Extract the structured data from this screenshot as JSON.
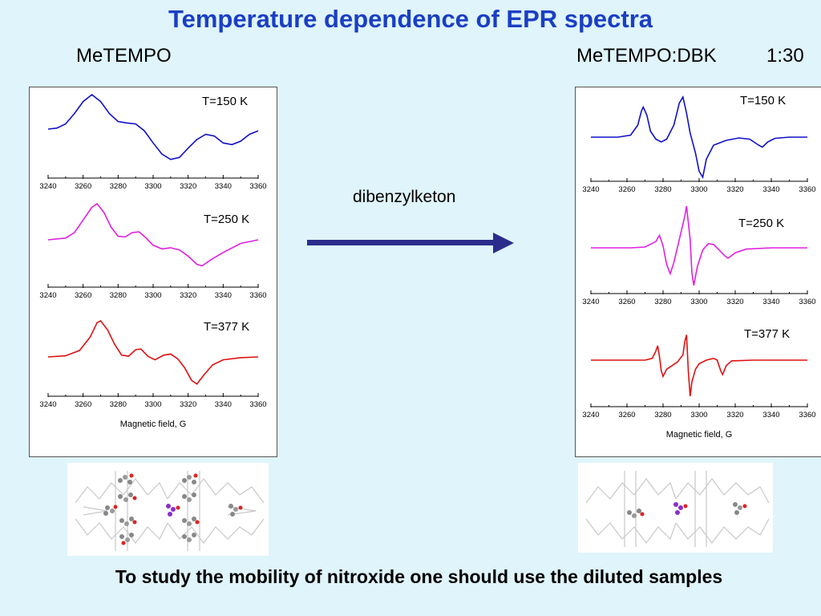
{
  "title": "Temperature dependence of EPR spectra",
  "left_label": "MeTEMPO",
  "right_label": "MeTEMPO:DBK",
  "right_ratio": "1:30",
  "arrow_label": "dibenzylketon",
  "footer": "To study the mobility of nitroxide one should use the diluted samples",
  "colors": {
    "t150": "#1010c8",
    "t250": "#e020e0",
    "t377": "#e01010",
    "arrow": "#2c2c8c",
    "title": "#1a3fc4"
  },
  "chart_data": [
    {
      "type": "line",
      "panel": "MeTEMPO",
      "xlabel": "Magnetic field, G",
      "ylabel": "",
      "xlim": [
        3240,
        3360
      ],
      "xticks": [
        3240,
        3260,
        3280,
        3300,
        3320,
        3340,
        3360
      ],
      "series": [
        {
          "name": "T=150 K",
          "color": "#1010c8",
          "points": [
            [
              3240,
              0.0
            ],
            [
              3245,
              0.03
            ],
            [
              3250,
              0.15
            ],
            [
              3255,
              0.45
            ],
            [
              3260,
              0.8
            ],
            [
              3265,
              1.0
            ],
            [
              3270,
              0.8
            ],
            [
              3275,
              0.45
            ],
            [
              3280,
              0.22
            ],
            [
              3285,
              0.18
            ],
            [
              3290,
              0.15
            ],
            [
              3295,
              -0.05
            ],
            [
              3300,
              -0.4
            ],
            [
              3305,
              -0.72
            ],
            [
              3310,
              -0.88
            ],
            [
              3315,
              -0.82
            ],
            [
              3320,
              -0.55
            ],
            [
              3325,
              -0.3
            ],
            [
              3330,
              -0.15
            ],
            [
              3335,
              -0.2
            ],
            [
              3340,
              -0.4
            ],
            [
              3345,
              -0.45
            ],
            [
              3350,
              -0.35
            ],
            [
              3355,
              -0.15
            ],
            [
              3360,
              -0.05
            ]
          ]
        },
        {
          "name": "T=250 K",
          "color": "#e020e0",
          "points": [
            [
              3240,
              0.0
            ],
            [
              3250,
              0.05
            ],
            [
              3255,
              0.2
            ],
            [
              3260,
              0.55
            ],
            [
              3265,
              0.9
            ],
            [
              3268,
              1.0
            ],
            [
              3272,
              0.75
            ],
            [
              3276,
              0.35
            ],
            [
              3280,
              0.1
            ],
            [
              3284,
              0.08
            ],
            [
              3288,
              0.2
            ],
            [
              3292,
              0.22
            ],
            [
              3296,
              0.05
            ],
            [
              3300,
              -0.15
            ],
            [
              3305,
              -0.25
            ],
            [
              3310,
              -0.22
            ],
            [
              3315,
              -0.28
            ],
            [
              3320,
              -0.45
            ],
            [
              3325,
              -0.68
            ],
            [
              3328,
              -0.72
            ],
            [
              3333,
              -0.55
            ],
            [
              3340,
              -0.35
            ],
            [
              3350,
              -0.1
            ],
            [
              3360,
              0.0
            ]
          ]
        },
        {
          "name": "T=377 K",
          "color": "#e01010",
          "points": [
            [
              3240,
              0.0
            ],
            [
              3250,
              0.03
            ],
            [
              3258,
              0.18
            ],
            [
              3264,
              0.55
            ],
            [
              3268,
              0.95
            ],
            [
              3270,
              1.0
            ],
            [
              3274,
              0.75
            ],
            [
              3278,
              0.35
            ],
            [
              3282,
              0.05
            ],
            [
              3286,
              0.02
            ],
            [
              3290,
              0.2
            ],
            [
              3293,
              0.22
            ],
            [
              3297,
              0.02
            ],
            [
              3301,
              -0.08
            ],
            [
              3306,
              0.05
            ],
            [
              3310,
              0.08
            ],
            [
              3314,
              -0.05
            ],
            [
              3318,
              -0.3
            ],
            [
              3322,
              -0.65
            ],
            [
              3325,
              -0.75
            ],
            [
              3329,
              -0.5
            ],
            [
              3334,
              -0.22
            ],
            [
              3340,
              -0.08
            ],
            [
              3350,
              -0.02
            ],
            [
              3360,
              0.0
            ]
          ]
        }
      ]
    },
    {
      "type": "line",
      "panel": "MeTEMPO:DBK 1:30",
      "xlabel": "Magnetic field, G",
      "ylabel": "",
      "xlim": [
        3240,
        3360
      ],
      "xticks": [
        3240,
        3260,
        3280,
        3300,
        3320,
        3340,
        3360
      ],
      "series": [
        {
          "name": "T=150 K",
          "color": "#1010c8",
          "points": [
            [
              3240,
              0.0
            ],
            [
              3255,
              0.0
            ],
            [
              3262,
              0.05
            ],
            [
              3266,
              0.3
            ],
            [
              3268,
              0.65
            ],
            [
              3269,
              0.75
            ],
            [
              3271,
              0.55
            ],
            [
              3273,
              0.15
            ],
            [
              3276,
              -0.05
            ],
            [
              3279,
              -0.12
            ],
            [
              3282,
              -0.05
            ],
            [
              3286,
              0.3
            ],
            [
              3289,
              0.85
            ],
            [
              3291,
              1.0
            ],
            [
              3293,
              0.6
            ],
            [
              3295,
              0.1
            ],
            [
              3298,
              -0.4
            ],
            [
              3300,
              -0.85
            ],
            [
              3302,
              -1.0
            ],
            [
              3304,
              -0.55
            ],
            [
              3308,
              -0.2
            ],
            [
              3315,
              -0.08
            ],
            [
              3322,
              -0.02
            ],
            [
              3328,
              -0.05
            ],
            [
              3333,
              -0.2
            ],
            [
              3335,
              -0.25
            ],
            [
              3338,
              -0.12
            ],
            [
              3342,
              -0.03
            ],
            [
              3350,
              0.0
            ],
            [
              3360,
              0.0
            ]
          ]
        },
        {
          "name": "T=250 K",
          "color": "#e020e0",
          "points": [
            [
              3240,
              0.0
            ],
            [
              3262,
              0.0
            ],
            [
              3270,
              0.02
            ],
            [
              3276,
              0.15
            ],
            [
              3278,
              0.3
            ],
            [
              3280,
              0.05
            ],
            [
              3282,
              -0.4
            ],
            [
              3284,
              -0.62
            ],
            [
              3286,
              -0.35
            ],
            [
              3289,
              0.2
            ],
            [
              3292,
              0.75
            ],
            [
              3293,
              1.0
            ],
            [
              3295,
              0.2
            ],
            [
              3296,
              -0.6
            ],
            [
              3297,
              -0.9
            ],
            [
              3299,
              -0.45
            ],
            [
              3302,
              -0.05
            ],
            [
              3305,
              0.1
            ],
            [
              3308,
              0.08
            ],
            [
              3311,
              -0.05
            ],
            [
              3314,
              -0.18
            ],
            [
              3316,
              -0.25
            ],
            [
              3320,
              -0.12
            ],
            [
              3326,
              -0.03
            ],
            [
              3340,
              0.0
            ],
            [
              3360,
              0.0
            ]
          ]
        },
        {
          "name": "T=377 K",
          "color": "#e01010",
          "points": [
            [
              3240,
              0.0
            ],
            [
              3270,
              0.0
            ],
            [
              3274,
              0.05
            ],
            [
              3276,
              0.25
            ],
            [
              3277,
              0.4
            ],
            [
              3278,
              0.1
            ],
            [
              3279,
              -0.3
            ],
            [
              3280,
              -0.45
            ],
            [
              3282,
              -0.25
            ],
            [
              3285,
              -0.15
            ],
            [
              3288,
              -0.05
            ],
            [
              3291,
              0.15
            ],
            [
              3292,
              0.5
            ],
            [
              3293,
              0.7
            ],
            [
              3294,
              -0.3
            ],
            [
              3295,
              -1.0
            ],
            [
              3296,
              -0.6
            ],
            [
              3298,
              -0.25
            ],
            [
              3300,
              -0.1
            ],
            [
              3304,
              0.0
            ],
            [
              3308,
              0.05
            ],
            [
              3310,
              0.0
            ],
            [
              3312,
              -0.3
            ],
            [
              3313,
              -0.4
            ],
            [
              3315,
              -0.15
            ],
            [
              3318,
              -0.02
            ],
            [
              3330,
              0.0
            ],
            [
              3360,
              0.0
            ]
          ]
        }
      ]
    }
  ]
}
